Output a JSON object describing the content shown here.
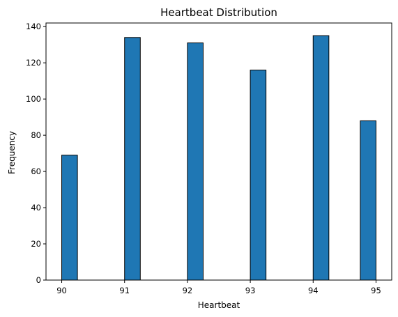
{
  "chart_data": {
    "type": "bar",
    "title": "Heartbeat Distribution",
    "xlabel": "Heartbeat",
    "ylabel": "Frequency",
    "bar_color": "#1f77b4",
    "edge_color": "#000000",
    "bins": [
      {
        "x0": 90.0,
        "x1": 90.25,
        "value": 69
      },
      {
        "x0": 91.0,
        "x1": 91.25,
        "value": 134
      },
      {
        "x0": 92.0,
        "x1": 92.25,
        "value": 131
      },
      {
        "x0": 93.0,
        "x1": 93.25,
        "value": 116
      },
      {
        "x0": 94.0,
        "x1": 94.25,
        "value": 135
      },
      {
        "x0": 94.75,
        "x1": 95.0,
        "value": 88
      }
    ],
    "xlim": [
      89.75,
      95.25
    ],
    "ylim": [
      0,
      142
    ],
    "xticks": [
      90,
      91,
      92,
      93,
      94,
      95
    ],
    "yticks": [
      0,
      20,
      40,
      60,
      80,
      100,
      120,
      140
    ],
    "grid": false,
    "legend": "none"
  }
}
